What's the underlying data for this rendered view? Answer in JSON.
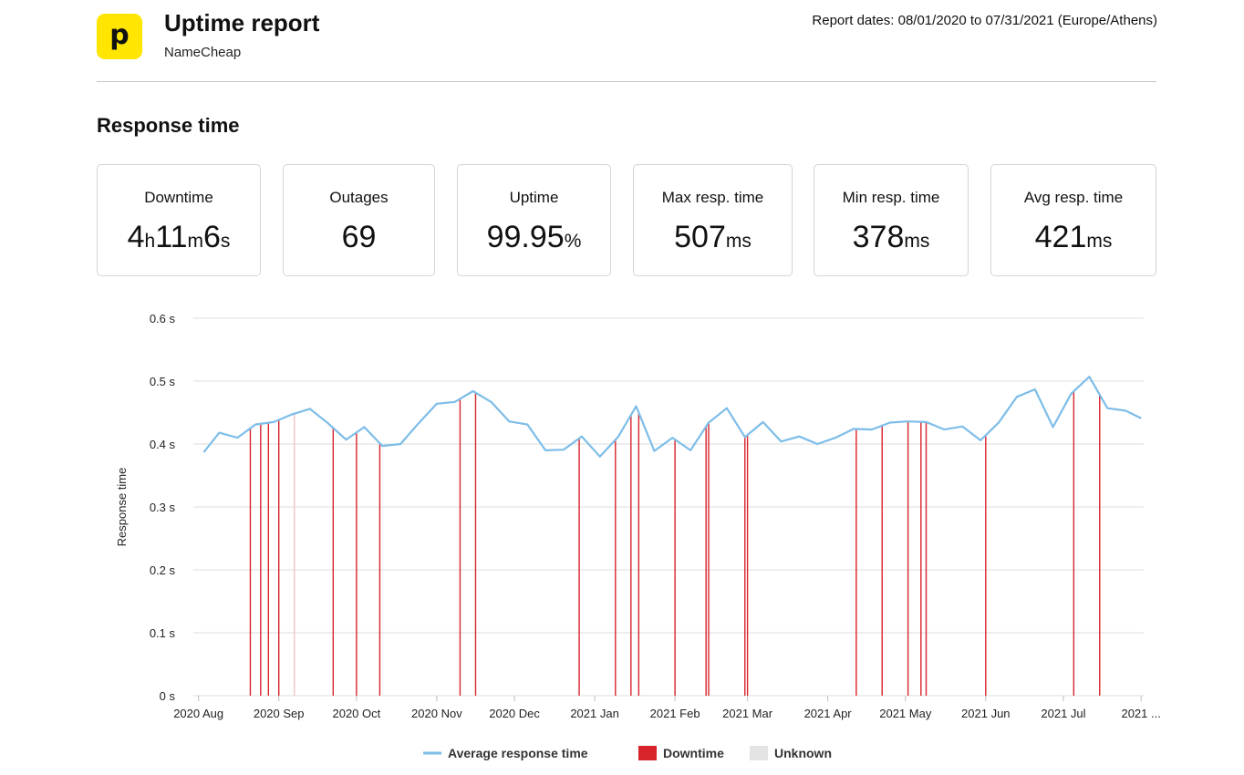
{
  "header": {
    "logo_letter": "p",
    "title": "Uptime report",
    "subtitle": "NameCheap",
    "report_dates": "Report dates: 08/01/2020 to 07/31/2021 (Europe/Athens)"
  },
  "section_title": "Response time",
  "stats": [
    {
      "label": "Downtime",
      "parts": [
        {
          "t": "4"
        },
        {
          "t": "h",
          "u": true
        },
        {
          "t": "11"
        },
        {
          "t": "m",
          "u": true
        },
        {
          "t": "6"
        },
        {
          "t": "s",
          "u": true
        }
      ]
    },
    {
      "label": "Outages",
      "parts": [
        {
          "t": "69"
        }
      ]
    },
    {
      "label": "Uptime",
      "parts": [
        {
          "t": "99.95"
        },
        {
          "t": "%",
          "u": true
        }
      ]
    },
    {
      "label": "Max resp. time",
      "parts": [
        {
          "t": "507"
        },
        {
          "t": "ms",
          "u": true
        }
      ]
    },
    {
      "label": "Min resp. time",
      "parts": [
        {
          "t": "378"
        },
        {
          "t": "ms",
          "u": true
        }
      ]
    },
    {
      "label": "Avg resp. time",
      "parts": [
        {
          "t": "421"
        },
        {
          "t": "ms",
          "u": true
        }
      ]
    }
  ],
  "colors": {
    "line": "#7dbde8",
    "downtime": "#d8232a",
    "unknown": "#e4e4e4",
    "grid": "#dddddd",
    "logo_bg": "#ffe500"
  },
  "chart_data": {
    "type": "line",
    "ylabel": "Response time",
    "ylim": [
      0,
      0.6
    ],
    "yticks": [
      {
        "v": 0,
        "label": "0 s"
      },
      {
        "v": 0.1,
        "label": "0.1 s"
      },
      {
        "v": 0.2,
        "label": "0.2 s"
      },
      {
        "v": 0.3,
        "label": "0.3 s"
      },
      {
        "v": 0.4,
        "label": "0.4 s"
      },
      {
        "v": 0.5,
        "label": "0.5 s"
      },
      {
        "v": 0.6,
        "label": "0.6 s"
      }
    ],
    "xlim": [
      "2020-07-30",
      "2021-08-01"
    ],
    "xticks": [
      {
        "date": "2020-08-01",
        "label": "2020 Aug"
      },
      {
        "date": "2020-09-01",
        "label": "2020 Sep"
      },
      {
        "date": "2020-10-01",
        "label": "2020 Oct"
      },
      {
        "date": "2020-11-01",
        "label": "2020 Nov"
      },
      {
        "date": "2020-12-01",
        "label": "2020 Dec"
      },
      {
        "date": "2021-01-01",
        "label": "2021 Jan"
      },
      {
        "date": "2021-02-01",
        "label": "2021 Feb"
      },
      {
        "date": "2021-03-01",
        "label": "2021 Mar"
      },
      {
        "date": "2021-04-01",
        "label": "2021 Apr"
      },
      {
        "date": "2021-05-01",
        "label": "2021 May"
      },
      {
        "date": "2021-06-01",
        "label": "2021 Jun"
      },
      {
        "date": "2021-07-01",
        "label": "2021 Jul"
      },
      {
        "date": "2021-07-31",
        "label": "2021 ..."
      }
    ],
    "series": [
      {
        "name": "Average response time",
        "points": [
          [
            "2020-08-03",
            0.387
          ],
          [
            "2020-08-09",
            0.418
          ],
          [
            "2020-08-16",
            0.41
          ],
          [
            "2020-08-23",
            0.431
          ],
          [
            "2020-08-30",
            0.435
          ],
          [
            "2020-09-06",
            0.447
          ],
          [
            "2020-09-13",
            0.456
          ],
          [
            "2020-09-20",
            0.433
          ],
          [
            "2020-09-27",
            0.407
          ],
          [
            "2020-10-04",
            0.427
          ],
          [
            "2020-10-11",
            0.397
          ],
          [
            "2020-10-18",
            0.4
          ],
          [
            "2020-10-25",
            0.433
          ],
          [
            "2020-11-01",
            0.464
          ],
          [
            "2020-11-08",
            0.467
          ],
          [
            "2020-11-15",
            0.484
          ],
          [
            "2020-11-22",
            0.467
          ],
          [
            "2020-11-29",
            0.436
          ],
          [
            "2020-12-06",
            0.431
          ],
          [
            "2020-12-13",
            0.39
          ],
          [
            "2020-12-20",
            0.391
          ],
          [
            "2020-12-27",
            0.412
          ],
          [
            "2021-01-03",
            0.38
          ],
          [
            "2021-01-10",
            0.411
          ],
          [
            "2021-01-17",
            0.46
          ],
          [
            "2021-01-24",
            0.389
          ],
          [
            "2021-01-31",
            0.41
          ],
          [
            "2021-02-07",
            0.39
          ],
          [
            "2021-02-14",
            0.434
          ],
          [
            "2021-02-21",
            0.457
          ],
          [
            "2021-02-28",
            0.411
          ],
          [
            "2021-03-07",
            0.435
          ],
          [
            "2021-03-14",
            0.404
          ],
          [
            "2021-03-21",
            0.412
          ],
          [
            "2021-03-28",
            0.4
          ],
          [
            "2021-04-04",
            0.41
          ],
          [
            "2021-04-11",
            0.424
          ],
          [
            "2021-04-18",
            0.423
          ],
          [
            "2021-04-25",
            0.434
          ],
          [
            "2021-05-02",
            0.436
          ],
          [
            "2021-05-09",
            0.435
          ],
          [
            "2021-05-16",
            0.423
          ],
          [
            "2021-05-23",
            0.428
          ],
          [
            "2021-05-30",
            0.406
          ],
          [
            "2021-06-06",
            0.434
          ],
          [
            "2021-06-13",
            0.475
          ],
          [
            "2021-06-20",
            0.487
          ],
          [
            "2021-06-27",
            0.427
          ],
          [
            "2021-07-04",
            0.48
          ],
          [
            "2021-07-11",
            0.507
          ],
          [
            "2021-07-18",
            0.457
          ],
          [
            "2021-07-25",
            0.453
          ],
          [
            "2021-07-31",
            0.441
          ]
        ]
      }
    ],
    "downtime_events": [
      "2020-08-21",
      "2020-08-25",
      "2020-08-28",
      "2020-09-01",
      "2020-09-22",
      "2020-10-01",
      "2020-10-10",
      "2020-11-10",
      "2020-11-16",
      "2020-12-26",
      "2021-01-09",
      "2021-01-15",
      "2021-01-18",
      "2021-02-01",
      "2021-02-13",
      "2021-02-14",
      "2021-02-28",
      "2021-03-01",
      "2021-04-12",
      "2021-04-22",
      "2021-05-02",
      "2021-05-07",
      "2021-05-09",
      "2021-06-01",
      "2021-07-05",
      "2021-07-15"
    ],
    "unknown_events": [
      "2020-09-07"
    ],
    "legend": [
      {
        "kind": "line",
        "label": "Average response time"
      },
      {
        "kind": "downtime",
        "label": "Downtime"
      },
      {
        "kind": "unknown",
        "label": "Unknown"
      }
    ],
    "legend_position": "bottom",
    "grid": true
  }
}
